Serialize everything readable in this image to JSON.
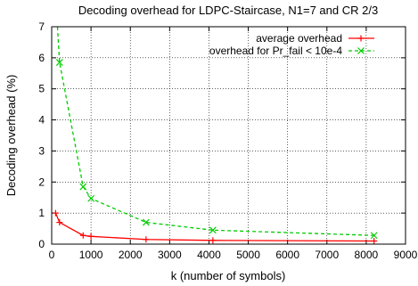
{
  "chart_data": {
    "type": "line",
    "title": "Decoding overhead for LDPC-Staircase, N1=7 and CR 2/3",
    "xlabel": "k (number of symbols)",
    "ylabel": "Decoding overhead (%)",
    "xlim": [
      0,
      9000
    ],
    "ylim": [
      0,
      7
    ],
    "x_ticks": [
      0,
      1000,
      2000,
      3000,
      4000,
      5000,
      6000,
      7000,
      8000,
      9000
    ],
    "y_ticks": [
      0,
      1,
      2,
      3,
      4,
      5,
      6,
      7
    ],
    "grid": true,
    "legend_position": "top-right",
    "series": [
      {
        "name": "average overhead",
        "color": "#ff0000",
        "line_style": "solid",
        "marker": "plus",
        "x": [
          100,
          200,
          800,
          1000,
          2400,
          4100,
          8200
        ],
        "y": [
          1.0,
          0.7,
          0.28,
          0.25,
          0.15,
          0.12,
          0.1
        ]
      },
      {
        "name": "overhead for Pr_fail < 10e-4",
        "color": "#00cc00",
        "line_style": "dashed",
        "marker": "cross",
        "x": [
          100,
          200,
          800,
          1000,
          2400,
          4100,
          8200
        ],
        "y": [
          8.0,
          5.85,
          1.85,
          1.47,
          0.7,
          0.45,
          0.28
        ]
      }
    ]
  }
}
